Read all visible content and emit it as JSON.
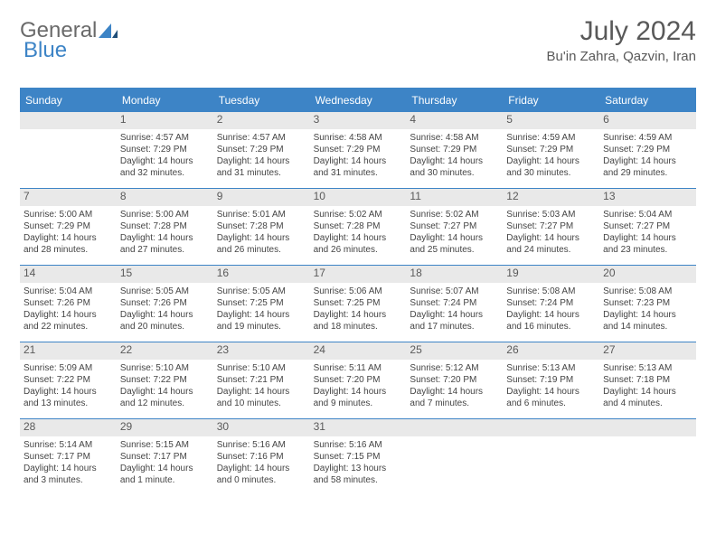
{
  "brand": {
    "word1": "General",
    "word2": "Blue"
  },
  "title": {
    "month": "July 2024",
    "location": "Bu'in Zahra, Qazvin, Iran"
  },
  "colors": {
    "accent": "#3d84c6",
    "header_text": "#595959",
    "daynum_bg": "#e9e9e9",
    "body_text": "#444444",
    "background": "#ffffff"
  },
  "calendar": {
    "dow": [
      "Sunday",
      "Monday",
      "Tuesday",
      "Wednesday",
      "Thursday",
      "Friday",
      "Saturday"
    ],
    "weeks": [
      [
        {
          "blank": true
        },
        {
          "n": "1",
          "sr": "4:57 AM",
          "ss": "7:29 PM",
          "dl": "14 hours and 32 minutes."
        },
        {
          "n": "2",
          "sr": "4:57 AM",
          "ss": "7:29 PM",
          "dl": "14 hours and 31 minutes."
        },
        {
          "n": "3",
          "sr": "4:58 AM",
          "ss": "7:29 PM",
          "dl": "14 hours and 31 minutes."
        },
        {
          "n": "4",
          "sr": "4:58 AM",
          "ss": "7:29 PM",
          "dl": "14 hours and 30 minutes."
        },
        {
          "n": "5",
          "sr": "4:59 AM",
          "ss": "7:29 PM",
          "dl": "14 hours and 30 minutes."
        },
        {
          "n": "6",
          "sr": "4:59 AM",
          "ss": "7:29 PM",
          "dl": "14 hours and 29 minutes."
        }
      ],
      [
        {
          "n": "7",
          "sr": "5:00 AM",
          "ss": "7:29 PM",
          "dl": "14 hours and 28 minutes."
        },
        {
          "n": "8",
          "sr": "5:00 AM",
          "ss": "7:28 PM",
          "dl": "14 hours and 27 minutes."
        },
        {
          "n": "9",
          "sr": "5:01 AM",
          "ss": "7:28 PM",
          "dl": "14 hours and 26 minutes."
        },
        {
          "n": "10",
          "sr": "5:02 AM",
          "ss": "7:28 PM",
          "dl": "14 hours and 26 minutes."
        },
        {
          "n": "11",
          "sr": "5:02 AM",
          "ss": "7:27 PM",
          "dl": "14 hours and 25 minutes."
        },
        {
          "n": "12",
          "sr": "5:03 AM",
          "ss": "7:27 PM",
          "dl": "14 hours and 24 minutes."
        },
        {
          "n": "13",
          "sr": "5:04 AM",
          "ss": "7:27 PM",
          "dl": "14 hours and 23 minutes."
        }
      ],
      [
        {
          "n": "14",
          "sr": "5:04 AM",
          "ss": "7:26 PM",
          "dl": "14 hours and 22 minutes."
        },
        {
          "n": "15",
          "sr": "5:05 AM",
          "ss": "7:26 PM",
          "dl": "14 hours and 20 minutes."
        },
        {
          "n": "16",
          "sr": "5:05 AM",
          "ss": "7:25 PM",
          "dl": "14 hours and 19 minutes."
        },
        {
          "n": "17",
          "sr": "5:06 AM",
          "ss": "7:25 PM",
          "dl": "14 hours and 18 minutes."
        },
        {
          "n": "18",
          "sr": "5:07 AM",
          "ss": "7:24 PM",
          "dl": "14 hours and 17 minutes."
        },
        {
          "n": "19",
          "sr": "5:08 AM",
          "ss": "7:24 PM",
          "dl": "14 hours and 16 minutes."
        },
        {
          "n": "20",
          "sr": "5:08 AM",
          "ss": "7:23 PM",
          "dl": "14 hours and 14 minutes."
        }
      ],
      [
        {
          "n": "21",
          "sr": "5:09 AM",
          "ss": "7:22 PM",
          "dl": "14 hours and 13 minutes."
        },
        {
          "n": "22",
          "sr": "5:10 AM",
          "ss": "7:22 PM",
          "dl": "14 hours and 12 minutes."
        },
        {
          "n": "23",
          "sr": "5:10 AM",
          "ss": "7:21 PM",
          "dl": "14 hours and 10 minutes."
        },
        {
          "n": "24",
          "sr": "5:11 AM",
          "ss": "7:20 PM",
          "dl": "14 hours and 9 minutes."
        },
        {
          "n": "25",
          "sr": "5:12 AM",
          "ss": "7:20 PM",
          "dl": "14 hours and 7 minutes."
        },
        {
          "n": "26",
          "sr": "5:13 AM",
          "ss": "7:19 PM",
          "dl": "14 hours and 6 minutes."
        },
        {
          "n": "27",
          "sr": "5:13 AM",
          "ss": "7:18 PM",
          "dl": "14 hours and 4 minutes."
        }
      ],
      [
        {
          "n": "28",
          "sr": "5:14 AM",
          "ss": "7:17 PM",
          "dl": "14 hours and 3 minutes."
        },
        {
          "n": "29",
          "sr": "5:15 AM",
          "ss": "7:17 PM",
          "dl": "14 hours and 1 minute."
        },
        {
          "n": "30",
          "sr": "5:16 AM",
          "ss": "7:16 PM",
          "dl": "14 hours and 0 minutes."
        },
        {
          "n": "31",
          "sr": "5:16 AM",
          "ss": "7:15 PM",
          "dl": "13 hours and 58 minutes."
        },
        {
          "blank": true
        },
        {
          "blank": true
        },
        {
          "blank": true
        }
      ]
    ],
    "labels": {
      "sunrise": "Sunrise:",
      "sunset": "Sunset:",
      "daylight": "Daylight:"
    },
    "typography": {
      "body_fontsize": 10,
      "daynum_fontsize": 12,
      "dow_fontsize": 12,
      "title_fontsize": 30,
      "loc_fontsize": 15
    }
  }
}
